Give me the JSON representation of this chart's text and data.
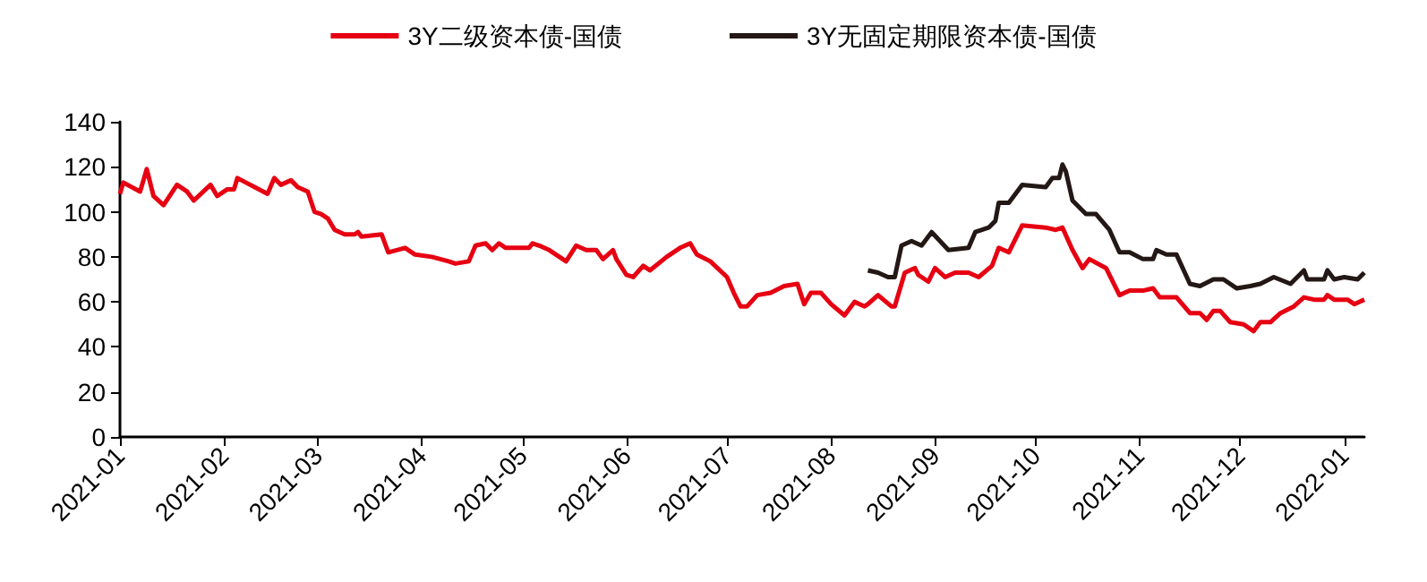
{
  "chart_data": {
    "type": "line",
    "legend": "top",
    "grid": false,
    "xlim": [
      "2021-01-01",
      "2022-01-07"
    ],
    "xticks": [
      "2021-01",
      "2021-02",
      "2021-03",
      "2021-04",
      "2021-05",
      "2021-06",
      "2021-07",
      "2021-08",
      "2021-09",
      "2021-10",
      "2021-11",
      "2021-12",
      "2022-01"
    ],
    "ylim": [
      0,
      140
    ],
    "yticks": [
      0,
      20,
      40,
      60,
      80,
      100,
      120,
      140
    ],
    "series": [
      {
        "name": "3Y二级资本债-国债",
        "color": "#e60012",
        "x": [
          "2021-01-01",
          "2021-01-02",
          "2021-01-07",
          "2021-01-09",
          "2021-01-11",
          "2021-01-14",
          "2021-01-18",
          "2021-01-21",
          "2021-01-23",
          "2021-01-28",
          "2021-01-30",
          "2021-02-02",
          "2021-02-04",
          "2021-02-05",
          "2021-02-14",
          "2021-02-16",
          "2021-02-18",
          "2021-02-21",
          "2021-02-23",
          "2021-02-26",
          "2021-02-28",
          "2021-03-02",
          "2021-03-04",
          "2021-03-06",
          "2021-03-09",
          "2021-03-12",
          "2021-03-13",
          "2021-03-14",
          "2021-03-20",
          "2021-03-22",
          "2021-03-27",
          "2021-03-30",
          "2021-04-04",
          "2021-04-09",
          "2021-04-11",
          "2021-04-15",
          "2021-04-17",
          "2021-04-20",
          "2021-04-22",
          "2021-04-24",
          "2021-04-26",
          "2021-05-03",
          "2021-05-04",
          "2021-05-06",
          "2021-05-09",
          "2021-05-11",
          "2021-05-14",
          "2021-05-17",
          "2021-05-20",
          "2021-05-23",
          "2021-05-25",
          "2021-05-28",
          "2021-05-29",
          "2021-06-01",
          "2021-06-03",
          "2021-06-06",
          "2021-06-08",
          "2021-06-13",
          "2021-06-17",
          "2021-06-20",
          "2021-06-22",
          "2021-06-26",
          "2021-07-01",
          "2021-07-03",
          "2021-07-05",
          "2021-07-07",
          "2021-07-10",
          "2021-07-14",
          "2021-07-18",
          "2021-07-22",
          "2021-07-24",
          "2021-07-26",
          "2021-07-29",
          "2021-08-01",
          "2021-08-05",
          "2021-08-08",
          "2021-08-11",
          "2021-08-12",
          "2021-08-15",
          "2021-08-19",
          "2021-08-20",
          "2021-08-23",
          "2021-08-26",
          "2021-08-27",
          "2021-08-30",
          "2021-09-01",
          "2021-09-04",
          "2021-09-07",
          "2021-09-11",
          "2021-09-14",
          "2021-09-18",
          "2021-09-20",
          "2021-09-23",
          "2021-09-27",
          "2021-10-04",
          "2021-10-07",
          "2021-10-09",
          "2021-10-12",
          "2021-10-15",
          "2021-10-17",
          "2021-10-22",
          "2021-10-26",
          "2021-10-29",
          "2021-11-02",
          "2021-11-05",
          "2021-11-07",
          "2021-11-12",
          "2021-11-16",
          "2021-11-19",
          "2021-11-21",
          "2021-11-23",
          "2021-11-25",
          "2021-11-28",
          "2021-12-02",
          "2021-12-05",
          "2021-12-07",
          "2021-12-10",
          "2021-12-13",
          "2021-12-17",
          "2021-12-20",
          "2021-12-23",
          "2021-12-26",
          "2021-12-27",
          "2021-12-29",
          "2022-01-02",
          "2022-01-04",
          "2022-01-07"
        ],
        "values": [
          108,
          113,
          109,
          119,
          107,
          103,
          112,
          109,
          105,
          112,
          107,
          110,
          110,
          115,
          108,
          115,
          112,
          114,
          111,
          109,
          100,
          99,
          97,
          92,
          90,
          90,
          91,
          89,
          90,
          82,
          84,
          81,
          80,
          78,
          77,
          78,
          85,
          86,
          83,
          86,
          84,
          84,
          86,
          85,
          83,
          81,
          78,
          85,
          83,
          83,
          79,
          83,
          79,
          72,
          71,
          76,
          74,
          80,
          84,
          86,
          81,
          78,
          71,
          64,
          58,
          58,
          63,
          64,
          67,
          68,
          59,
          64,
          64,
          59,
          54,
          60,
          58,
          59,
          63,
          58,
          58,
          73,
          75,
          72,
          69,
          75,
          71,
          73,
          73,
          71,
          76,
          84,
          82,
          94,
          93,
          92,
          93,
          83,
          75,
          79,
          75,
          63,
          65,
          65,
          66,
          62,
          62,
          55,
          55,
          52,
          56,
          56,
          51,
          50,
          47,
          51,
          51,
          55,
          58,
          62,
          61,
          61,
          63,
          61,
          61,
          59,
          61
        ]
      },
      {
        "name": "3Y无固定期限资本债-国债",
        "color": "#231815",
        "x": [
          "2021-08-12",
          "2021-08-15",
          "2021-08-18",
          "2021-08-20",
          "2021-08-22",
          "2021-08-25",
          "2021-08-28",
          "2021-08-31",
          "2021-09-05",
          "2021-09-11",
          "2021-09-13",
          "2021-09-17",
          "2021-09-19",
          "2021-09-20",
          "2021-09-23",
          "2021-09-27",
          "2021-10-04",
          "2021-10-06",
          "2021-10-08",
          "2021-10-09",
          "2021-10-10",
          "2021-10-12",
          "2021-10-16",
          "2021-10-19",
          "2021-10-23",
          "2021-10-26",
          "2021-10-29",
          "2021-11-02",
          "2021-11-05",
          "2021-11-06",
          "2021-11-09",
          "2021-11-12",
          "2021-11-16",
          "2021-11-19",
          "2021-11-23",
          "2021-11-26",
          "2021-11-30",
          "2021-12-04",
          "2021-12-07",
          "2021-12-11",
          "2021-12-16",
          "2021-12-20",
          "2021-12-21",
          "2021-12-26",
          "2021-12-27",
          "2021-12-29",
          "2022-01-01",
          "2022-01-05",
          "2022-01-07"
        ],
        "values": [
          74,
          73,
          71,
          71,
          85,
          87,
          85,
          91,
          83,
          84,
          91,
          93,
          96,
          104,
          104,
          112,
          111,
          115,
          115,
          121,
          118,
          105,
          99,
          99,
          92,
          82,
          82,
          79,
          79,
          83,
          81,
          81,
          68,
          67,
          70,
          70,
          66,
          67,
          68,
          71,
          68,
          74,
          70,
          70,
          74,
          70,
          71,
          70,
          73
        ]
      }
    ]
  }
}
